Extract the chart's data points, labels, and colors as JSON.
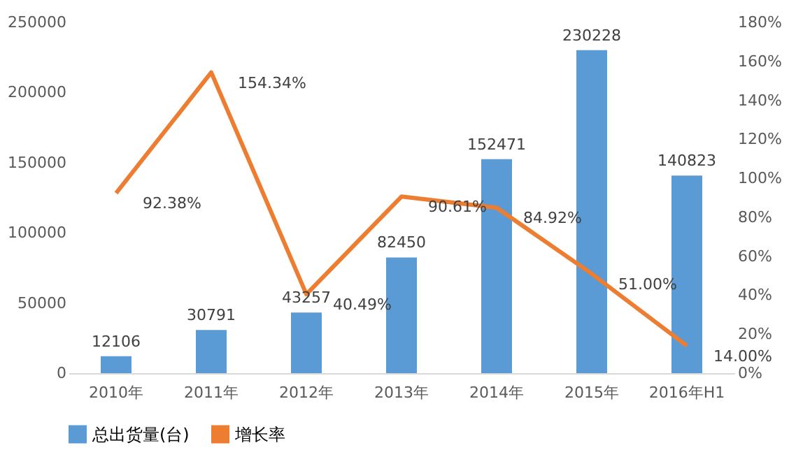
{
  "chart_data": {
    "type": "bar",
    "categories": [
      "2010年",
      "2011年",
      "2012年",
      "2013年",
      "2014年",
      "2015年",
      "2016年H1"
    ],
    "series": [
      {
        "name": "总出货量(台)",
        "color": "#5b9bd5",
        "values": [
          12106,
          30791,
          43257,
          82450,
          152471,
          230228,
          140823
        ],
        "value_labels": [
          "12106",
          "30791",
          "43257",
          "82450",
          "152471",
          "230228",
          "140823"
        ]
      },
      {
        "name": "增长率",
        "type": "line",
        "axis": "y2",
        "color": "#ed7d31",
        "values": [
          92.38,
          154.34,
          40.49,
          90.61,
          84.92,
          51.0,
          14.0
        ],
        "value_labels": [
          "92.38%",
          "154.34%",
          "40.49%",
          "90.61%",
          "84.92%",
          "51.00%",
          "14.00%"
        ]
      }
    ],
    "ylim": [
      0,
      250000
    ],
    "yticks": [
      0,
      50000,
      100000,
      150000,
      200000,
      250000
    ],
    "y2lim": [
      0,
      180
    ],
    "y2ticks": [
      {
        "value": 0,
        "label": "0%"
      },
      {
        "value": 20,
        "label": "20%"
      },
      {
        "value": 40,
        "label": "40%"
      },
      {
        "value": 60,
        "label": "60%"
      },
      {
        "value": 80,
        "label": "80%"
      },
      {
        "value": 100,
        "label": "100%"
      },
      {
        "value": 120,
        "label": "120%"
      },
      {
        "value": 140,
        "label": "140%"
      },
      {
        "value": 160,
        "label": "160%"
      },
      {
        "value": 180,
        "label": "180%"
      }
    ],
    "legend": "bottom",
    "grid": false,
    "marker": "none",
    "line_style": "solid"
  }
}
